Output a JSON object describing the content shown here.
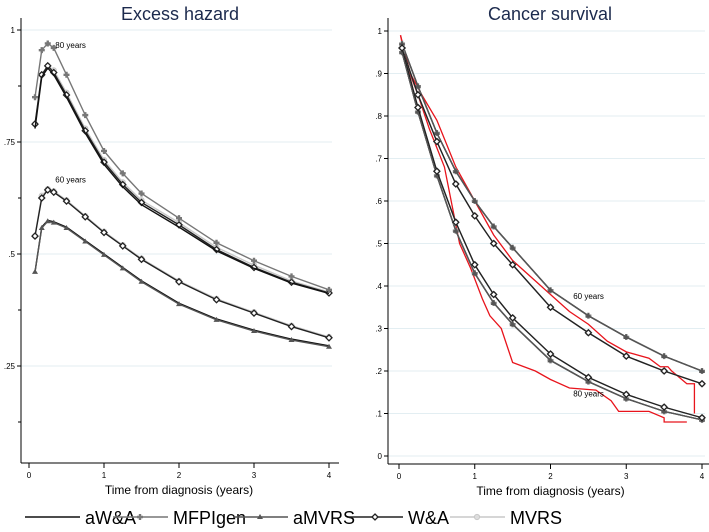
{
  "chart_data": [
    {
      "type": "line",
      "title": "Excess hazard",
      "xlabel": "Time from diagnosis (years)",
      "ylabel": "",
      "xlim": [
        0,
        4
      ],
      "ylim": [
        0.03,
        1.03
      ],
      "xticks": [
        0,
        1,
        2,
        3,
        4
      ],
      "yticks": [
        {
          "v": 1,
          "label": "1"
        },
        {
          "v": 0.75,
          "label": ".75"
        },
        {
          "v": 0.5,
          "label": ".5"
        },
        {
          "v": 0.25,
          "label": ".25"
        }
      ],
      "annotations": [
        {
          "text": "80 years",
          "x": 0.35,
          "y": 0.96
        },
        {
          "text": "60 years",
          "x": 0.35,
          "y": 0.66
        }
      ],
      "t": [
        0.08,
        0.17,
        0.25,
        0.33,
        0.5,
        0.75,
        1,
        1.25,
        1.5,
        2,
        2.5,
        3,
        3.5,
        4
      ],
      "series": [
        {
          "name": "MVRS",
          "age": "80 years",
          "values": [
            0.79,
            0.9,
            0.92,
            0.91,
            0.86,
            0.78,
            0.71,
            0.66,
            0.62,
            0.57,
            0.515,
            0.475,
            0.44,
            0.415
          ]
        },
        {
          "name": "W&A",
          "age": "80 years",
          "values": [
            0.79,
            0.9,
            0.92,
            0.905,
            0.855,
            0.775,
            0.705,
            0.655,
            0.615,
            0.565,
            0.51,
            0.47,
            0.437,
            0.413
          ]
        },
        {
          "name": "aW&A",
          "age": "80 years",
          "values": [
            0.78,
            0.895,
            0.915,
            0.9,
            0.85,
            0.77,
            0.7,
            0.65,
            0.61,
            0.56,
            0.507,
            0.468,
            0.435,
            0.412
          ]
        },
        {
          "name": "MFPIgen",
          "age": "80 years",
          "values": [
            0.85,
            0.955,
            0.97,
            0.96,
            0.9,
            0.81,
            0.73,
            0.68,
            0.635,
            0.58,
            0.525,
            0.485,
            0.45,
            0.42
          ]
        },
        {
          "name": "MVRS",
          "age": "60 years",
          "values": [
            0.54,
            0.63,
            0.645,
            0.64,
            0.62,
            0.585,
            0.55,
            0.52,
            0.49,
            0.44,
            0.4,
            0.37,
            0.34,
            0.315
          ]
        },
        {
          "name": "W&A",
          "age": "60 years",
          "values": [
            0.54,
            0.625,
            0.643,
            0.638,
            0.618,
            0.583,
            0.548,
            0.518,
            0.488,
            0.438,
            0.398,
            0.368,
            0.338,
            0.313
          ]
        },
        {
          "name": "aW&A",
          "age": "60 years",
          "values": [
            0.46,
            0.56,
            0.575,
            0.572,
            0.56,
            0.53,
            0.5,
            0.47,
            0.44,
            0.39,
            0.355,
            0.33,
            0.31,
            0.295
          ]
        },
        {
          "name": "aMVRS",
          "age": "60 years",
          "values": [
            0.46,
            0.558,
            0.573,
            0.57,
            0.558,
            0.528,
            0.498,
            0.468,
            0.438,
            0.388,
            0.353,
            0.328,
            0.308,
            0.293
          ]
        }
      ]
    },
    {
      "type": "line",
      "title": "Cancer survival",
      "xlabel": "Time from diagnosis (years)",
      "ylabel": "",
      "xlim": [
        0,
        4
      ],
      "ylim": [
        -0.01,
        1.04
      ],
      "xticks": [
        0,
        1,
        2,
        3,
        4
      ],
      "yticks": [
        {
          "v": 1,
          "label": "1"
        },
        {
          "v": 0.9,
          "label": ".9"
        },
        {
          "v": 0.8,
          "label": ".8"
        },
        {
          "v": 0.7,
          "label": ".7"
        },
        {
          "v": 0.6,
          "label": ".6"
        },
        {
          "v": 0.5,
          "label": ".5"
        },
        {
          "v": 0.4,
          "label": ".4"
        },
        {
          "v": 0.3,
          "label": ".3"
        },
        {
          "v": 0.2,
          "label": ".2"
        },
        {
          "v": 0.1,
          "label": ".1"
        },
        {
          "v": 0,
          "label": "0"
        }
      ],
      "annotations": [
        {
          "text": "60 years",
          "x": 2.3,
          "y": 0.37
        },
        {
          "text": "80 years",
          "x": 2.3,
          "y": 0.14
        }
      ],
      "t": [
        0.04,
        0.25,
        0.5,
        0.75,
        1,
        1.25,
        1.5,
        2,
        2.5,
        3,
        3.5,
        4
      ],
      "series": [
        {
          "name": "aW&A",
          "age": "60 years",
          "values": [
            0.97,
            0.87,
            0.76,
            0.67,
            0.6,
            0.54,
            0.49,
            0.39,
            0.33,
            0.28,
            0.235,
            0.2
          ]
        },
        {
          "name": "MFPIgen",
          "age": "60 years",
          "values": [
            0.97,
            0.87,
            0.76,
            0.67,
            0.6,
            0.54,
            0.49,
            0.39,
            0.33,
            0.28,
            0.235,
            0.2
          ]
        },
        {
          "name": "aMVRS",
          "age": "60 years",
          "values": [
            0.97,
            0.87,
            0.76,
            0.67,
            0.6,
            0.54,
            0.49,
            0.39,
            0.33,
            0.28,
            0.235,
            0.2
          ]
        },
        {
          "name": "MVRS",
          "age": "60 years",
          "values": [
            0.96,
            0.85,
            0.74,
            0.64,
            0.565,
            0.5,
            0.45,
            0.35,
            0.29,
            0.235,
            0.2,
            0.17
          ]
        },
        {
          "name": "W&A",
          "age": "60 years",
          "values": [
            0.96,
            0.85,
            0.74,
            0.64,
            0.565,
            0.5,
            0.45,
            0.35,
            0.29,
            0.235,
            0.2,
            0.17
          ]
        },
        {
          "name": "aW&A",
          "age": "80 years",
          "values": [
            0.95,
            0.81,
            0.66,
            0.53,
            0.43,
            0.36,
            0.31,
            0.225,
            0.175,
            0.135,
            0.105,
            0.085
          ]
        },
        {
          "name": "MFPIgen",
          "age": "80 years",
          "values": [
            0.95,
            0.81,
            0.66,
            0.53,
            0.43,
            0.36,
            0.31,
            0.225,
            0.175,
            0.135,
            0.105,
            0.085
          ]
        },
        {
          "name": "aMVRS",
          "age": "80 years",
          "values": [
            0.95,
            0.81,
            0.66,
            0.53,
            0.43,
            0.36,
            0.31,
            0.225,
            0.175,
            0.135,
            0.105,
            0.085
          ]
        },
        {
          "name": "MVRS",
          "age": "80 years",
          "values": [
            0.96,
            0.82,
            0.67,
            0.55,
            0.45,
            0.38,
            0.325,
            0.24,
            0.185,
            0.145,
            0.115,
            0.09
          ]
        },
        {
          "name": "W&A",
          "age": "80 years",
          "values": [
            0.96,
            0.82,
            0.67,
            0.55,
            0.45,
            0.38,
            0.325,
            0.24,
            0.185,
            0.145,
            0.115,
            0.09
          ]
        }
      ],
      "observed": [
        {
          "age": "60 years",
          "points": [
            [
              0.02,
              0.99
            ],
            [
              0.15,
              0.9
            ],
            [
              0.3,
              0.85
            ],
            [
              0.5,
              0.79
            ],
            [
              0.75,
              0.68
            ],
            [
              1,
              0.6
            ],
            [
              1.25,
              0.52
            ],
            [
              1.5,
              0.46
            ],
            [
              1.75,
              0.42
            ],
            [
              2,
              0.38
            ],
            [
              2.25,
              0.34
            ],
            [
              2.5,
              0.31
            ],
            [
              2.75,
              0.27
            ],
            [
              3,
              0.245
            ],
            [
              3.3,
              0.23
            ],
            [
              3.45,
              0.21
            ],
            [
              3.55,
              0.21
            ],
            [
              3.6,
              0.2
            ],
            [
              3.8,
              0.17
            ],
            [
              3.9,
              0.17
            ],
            [
              3.9,
              0.1
            ]
          ]
        },
        {
          "age": "80 years",
          "points": [
            [
              0.02,
              0.99
            ],
            [
              0.1,
              0.92
            ],
            [
              0.25,
              0.85
            ],
            [
              0.4,
              0.77
            ],
            [
              0.6,
              0.68
            ],
            [
              0.8,
              0.5
            ],
            [
              0.95,
              0.44
            ],
            [
              1.1,
              0.37
            ],
            [
              1.2,
              0.33
            ],
            [
              1.35,
              0.3
            ],
            [
              1.5,
              0.22
            ],
            [
              1.8,
              0.2
            ],
            [
              2,
              0.18
            ],
            [
              2.25,
              0.16
            ],
            [
              2.6,
              0.155
            ],
            [
              2.8,
              0.13
            ],
            [
              2.9,
              0.105
            ],
            [
              3.3,
              0.105
            ],
            [
              3.5,
              0.09
            ],
            [
              3.5,
              0.08
            ],
            [
              3.8,
              0.08
            ]
          ]
        }
      ]
    }
  ],
  "legend": [
    {
      "name": "aW&A",
      "color": "#111111",
      "marker": "none"
    },
    {
      "name": "MFPIgen",
      "color": "#777777",
      "marker": "plus"
    },
    {
      "name": "aMVRS",
      "color": "#555555",
      "marker": "triangle"
    },
    {
      "name": "W&A",
      "color": "#222222",
      "marker": "diamond"
    },
    {
      "name": "MVRS",
      "color": "#c8c8c8",
      "marker": "circle"
    }
  ],
  "observed_color": "#e8141c"
}
